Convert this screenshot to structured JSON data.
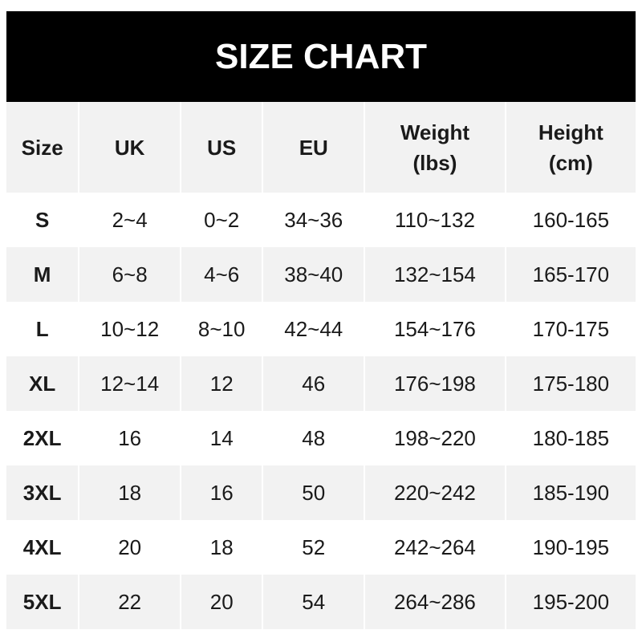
{
  "title": "SIZE CHART",
  "headers": [
    "Size",
    "UK",
    "US",
    "EU",
    "Weight\n(lbs)",
    "Height\n(cm)"
  ],
  "header_lines": [
    [
      "Size"
    ],
    [
      "UK"
    ],
    [
      "US"
    ],
    [
      "EU"
    ],
    [
      "Weight",
      "(lbs)"
    ],
    [
      "Height",
      "(cm)"
    ]
  ],
  "rows": [
    [
      "S",
      "2~4",
      "0~2",
      "34~36",
      "110~132",
      "160-165"
    ],
    [
      "M",
      "6~8",
      "4~6",
      "38~40",
      "132~154",
      "165-170"
    ],
    [
      "L",
      "10~12",
      "8~10",
      "42~44",
      "154~176",
      "170-175"
    ],
    [
      "XL",
      "12~14",
      "12",
      "46",
      "176~198",
      "175-180"
    ],
    [
      "2XL",
      "16",
      "14",
      "48",
      "198~220",
      "180-185"
    ],
    [
      "3XL",
      "18",
      "16",
      "50",
      "220~242",
      "185-190"
    ],
    [
      "4XL",
      "20",
      "18",
      "52",
      "242~264",
      "190-195"
    ],
    [
      "5XL",
      "22",
      "20",
      "54",
      "264~286",
      "195-200"
    ]
  ],
  "colors": {
    "header_bg": "#000000",
    "stripe": "#f2f2f2"
  }
}
